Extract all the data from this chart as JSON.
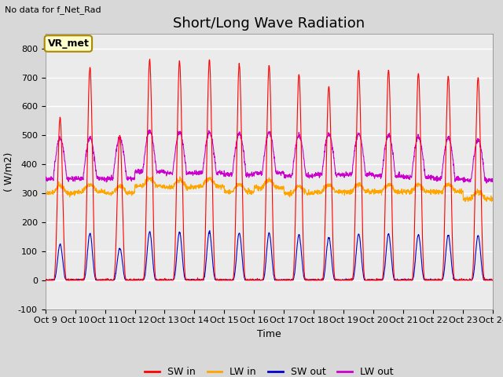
{
  "title": "Short/Long Wave Radiation",
  "subtitle": "No data for f_Net_Rad",
  "xlabel": "Time",
  "ylabel": "( W/m2)",
  "ylim": [
    -100,
    850
  ],
  "xtick_labels": [
    "Oct 9",
    "Oct 10",
    "Oct 11",
    "Oct 12",
    "Oct 13",
    "Oct 14",
    "Oct 15",
    "Oct 16",
    "Oct 17",
    "Oct 18",
    "Oct 19",
    "Oct 20",
    "Oct 21",
    "Oct 22",
    "Oct 23",
    "Oct 24"
  ],
  "legend_labels": [
    "SW in",
    "LW in",
    "SW out",
    "LW out"
  ],
  "sw_in_color": "#ff0000",
  "lw_in_color": "#ffa500",
  "sw_out_color": "#0000cc",
  "lw_out_color": "#cc00cc",
  "bg_color": "#d8d8d8",
  "plot_bg_color": "#ebebeb",
  "vr_met_box_color": "#ffffcc",
  "vr_met_border_color": "#aa8800",
  "title_fontsize": 13,
  "label_fontsize": 9,
  "tick_fontsize": 8,
  "n_days": 15,
  "points_per_day": 144,
  "sw_peaks": [
    560,
    735,
    500,
    760,
    755,
    760,
    745,
    740,
    710,
    670,
    725,
    725,
    715,
    705,
    700
  ],
  "lw_baseline": [
    300,
    305,
    300,
    325,
    320,
    325,
    305,
    320,
    300,
    305,
    305,
    305,
    305,
    305,
    280
  ],
  "lw_out_baseline": [
    350,
    350,
    350,
    375,
    370,
    370,
    365,
    370,
    360,
    365,
    365,
    360,
    355,
    350,
    345
  ]
}
